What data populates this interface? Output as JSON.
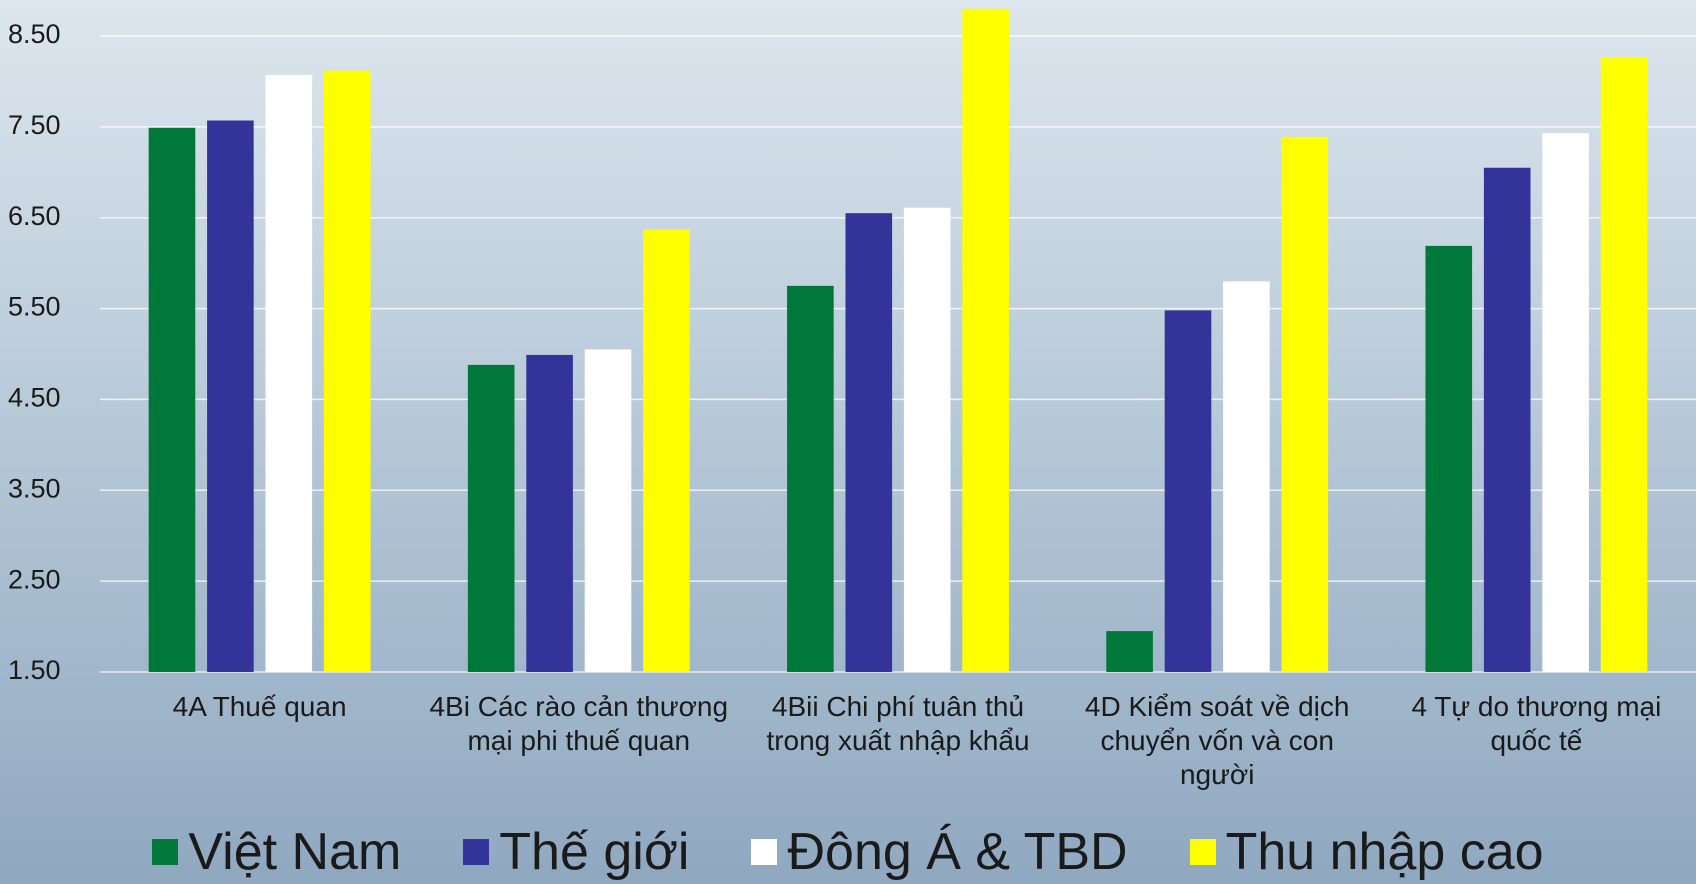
{
  "chart_data": {
    "type": "bar",
    "categories": [
      "4A Thuế quan",
      "4Bi Các rào cản thương mại phi thuế quan",
      "4Bii Chi phí tuân thủ trong xuất nhập khẩu",
      "4D Kiểm soát về dịch chuyển vốn và con người",
      "4 Tự do thương mại quốc tế"
    ],
    "series": [
      {
        "name": "Việt Nam",
        "color": "#00783a",
        "values": [
          7.49,
          4.88,
          5.75,
          1.95,
          6.19
        ]
      },
      {
        "name": "Thế giới",
        "color": "#333399",
        "values": [
          7.57,
          4.99,
          6.55,
          5.48,
          7.05
        ]
      },
      {
        "name": "Đông Á & TBD",
        "color": "#ffffff",
        "values": [
          8.07,
          5.05,
          6.61,
          5.8,
          7.43
        ]
      },
      {
        "name": "Thu nhập cao",
        "color": "#ffff00",
        "values": [
          8.12,
          6.37,
          8.8,
          7.39,
          8.27
        ]
      }
    ],
    "ylim": [
      1.5,
      8.9
    ],
    "yticks": [
      {
        "value": 1.5,
        "label": "1.50"
      },
      {
        "value": 2.5,
        "label": "2.50"
      },
      {
        "value": 3.5,
        "label": "3.50"
      },
      {
        "value": 4.5,
        "label": "4.50"
      },
      {
        "value": 5.5,
        "label": "5.50"
      },
      {
        "value": 6.5,
        "label": "6.50"
      },
      {
        "value": 7.5,
        "label": "7.50"
      },
      {
        "value": 8.5,
        "label": "8.50"
      }
    ],
    "grid": true
  }
}
